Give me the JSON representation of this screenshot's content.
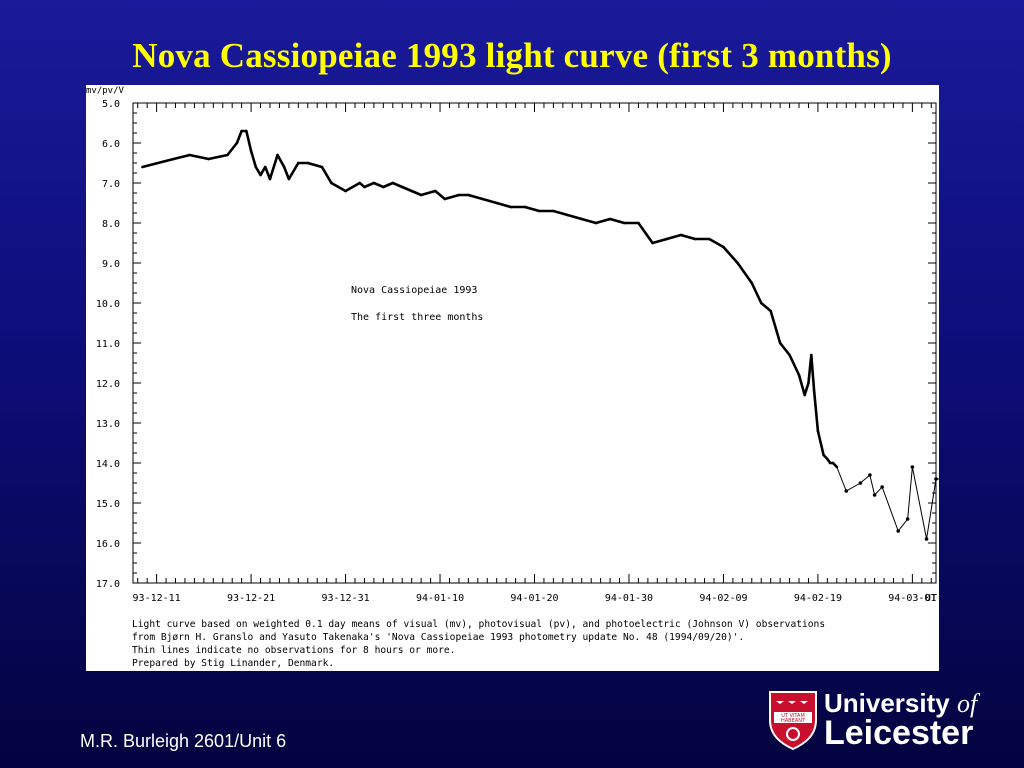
{
  "slide": {
    "title": "Nova Cassiopeiae 1993 light curve (first 3 months)",
    "footer": "M.R. Burleigh 2601/Unit 6"
  },
  "logo": {
    "line1_main": "University ",
    "line1_italic": "of",
    "line2": "Leicester",
    "crest_motto_line1": "UT VITAM",
    "crest_motto_line2": "HABEANT",
    "colors": {
      "crest_red": "#c8102e",
      "crest_white": "#ffffff"
    }
  },
  "chart_data": {
    "type": "line",
    "ylabel": "mv/pv/V",
    "xlabel": "UT",
    "y_inverted": true,
    "ylim": [
      5.0,
      17.0
    ],
    "ytick_labels": [
      "5.0",
      "6.0",
      "7.0",
      "8.0",
      "9.0",
      "10.0",
      "11.0",
      "12.0",
      "13.0",
      "14.0",
      "15.0",
      "16.0",
      "17.0"
    ],
    "xlim": [
      -2.5,
      82.5
    ],
    "xtick_labels": [
      "93-12-11",
      "93-12-21",
      "93-12-31",
      "94-01-10",
      "94-01-20",
      "94-01-30",
      "94-02-09",
      "94-02-19",
      "94-03-01"
    ],
    "xtick_days": [
      0,
      10,
      20,
      30,
      40,
      50,
      60,
      70,
      80
    ],
    "grid": false,
    "annotation_lines": [
      "Nova Cassiopeiae 1993",
      "The first three months"
    ],
    "caption_lines": [
      "Light curve based on weighted 0.1 day means of visual (mv), photovisual (pv), and photoelectric (Johnson V) observations",
      "from Bjørn H. Granslo and Yasuto Takenaka's 'Nova Cassiopeiae 1993 photometry update No. 48 (1994/09/20)'.",
      "Thin lines indicate no observations for 8 hours or more.",
      "Prepared by Stig Linander, Denmark."
    ],
    "series": [
      {
        "x": [
          -1.5,
          1.8,
          3.5,
          5.5,
          7.5,
          8.5,
          9.0,
          9.5,
          10.0,
          10.5,
          11.0,
          11.5,
          12.0,
          12.8,
          13.5,
          14.0,
          15.0,
          16.0,
          17.5,
          18.5,
          20.0,
          21.5,
          22.0,
          23.0,
          24.0,
          25.0,
          26.0,
          27.0,
          28.0,
          29.5,
          30.5,
          32.0,
          33.0,
          34.5,
          36.0,
          37.5,
          39.0,
          40.5,
          42.0,
          43.5,
          45.0,
          46.5,
          48.0,
          49.5,
          51.0,
          52.5,
          54.0,
          55.5,
          57.0,
          58.5,
          60.0,
          61.5,
          63.0,
          64.0,
          65.0,
          66.0,
          67.0,
          68.0,
          68.6,
          69.0,
          69.3,
          69.6,
          70.0,
          70.3,
          70.6,
          71.0,
          71.3,
          71.6,
          72.0,
          73.0,
          74.5,
          75.5,
          76.0,
          76.8,
          78.5,
          79.5,
          80.0,
          81.5,
          82.5,
          83.5,
          84.0
        ],
        "y": [
          6.6,
          6.4,
          6.3,
          6.4,
          6.3,
          6.0,
          5.7,
          5.7,
          6.2,
          6.6,
          6.8,
          6.6,
          6.9,
          6.3,
          6.6,
          6.9,
          6.5,
          6.5,
          6.6,
          7.0,
          7.2,
          7.0,
          7.1,
          7.0,
          7.1,
          7.0,
          7.1,
          7.2,
          7.3,
          7.2,
          7.4,
          7.3,
          7.3,
          7.4,
          7.5,
          7.6,
          7.6,
          7.7,
          7.7,
          7.8,
          7.9,
          8.0,
          7.9,
          8.0,
          8.0,
          8.5,
          8.4,
          8.3,
          8.4,
          8.4,
          8.6,
          9.0,
          9.5,
          10.0,
          10.2,
          11.0,
          11.3,
          11.8,
          12.3,
          12.0,
          11.3,
          12.2,
          13.2,
          13.5,
          13.8,
          13.9,
          14.0,
          14.0,
          14.1,
          14.7,
          14.5,
          14.3,
          14.8,
          14.6,
          15.7,
          15.4,
          14.1,
          15.9,
          14.4,
          14.4,
          14.4
        ]
      }
    ]
  }
}
